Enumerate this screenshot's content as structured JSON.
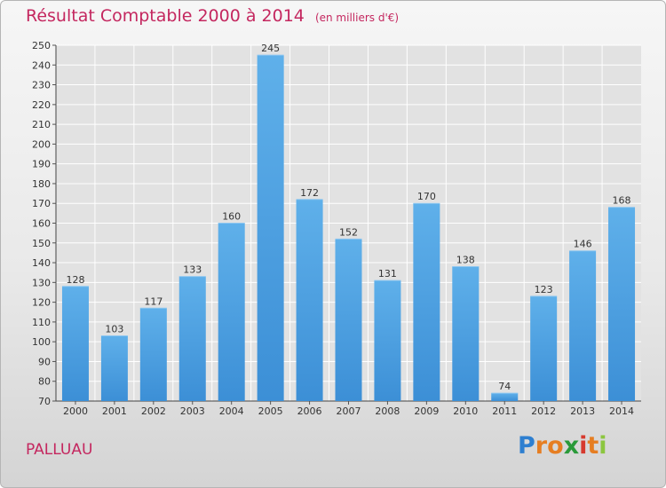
{
  "chart_data": {
    "type": "bar",
    "title": "Résultat Comptable 2000 à 2014",
    "subtitle": "(en milliers d'€)",
    "xlabel": "",
    "ylabel": "",
    "categories": [
      "2000",
      "2001",
      "2002",
      "2003",
      "2004",
      "2005",
      "2006",
      "2007",
      "2008",
      "2009",
      "2010",
      "2011",
      "2012",
      "2013",
      "2014"
    ],
    "values": [
      128,
      103,
      117,
      133,
      160,
      245,
      172,
      152,
      131,
      170,
      138,
      74,
      123,
      146,
      168
    ],
    "ylim": [
      70,
      250
    ],
    "ytick_step": 10,
    "grid": true,
    "bar_color": "#3c8fd6",
    "bar_color_light": "#5fb0ea"
  },
  "footer": {
    "town": "PALLUAU",
    "logo_letters": [
      "P",
      "r",
      "o",
      "x",
      "i",
      "t",
      "i"
    ],
    "logo_colors": [
      "#2e7fd0",
      "#e67e22",
      "#e67e22",
      "#2a9a3a",
      "#d63a2f",
      "#e67e22",
      "#8cc63f"
    ]
  }
}
